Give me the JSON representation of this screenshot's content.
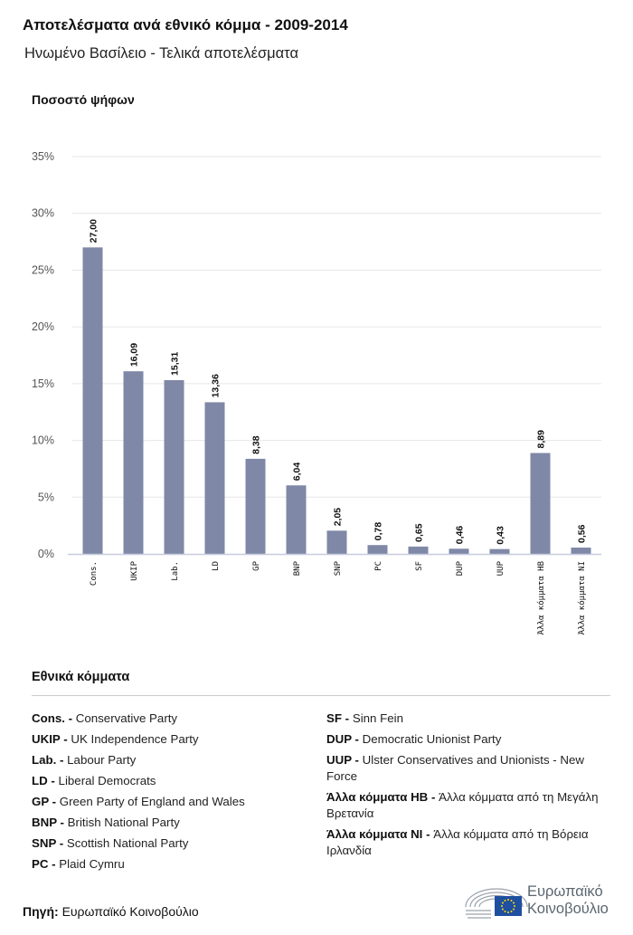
{
  "title": "Αποτελέσματα ανά εθνικό κόμμα - 2009-2014",
  "subtitle": "Ηνωμένο Βασίλειο - Τελικά αποτελέσματα",
  "chart_data": {
    "type": "bar",
    "ylabel": "Ποσοστό ψήφων",
    "categories": [
      "Cons.",
      "UKIP",
      "Lab.",
      "LD",
      "GP",
      "BNP",
      "SNP",
      "PC",
      "SF",
      "DUP",
      "UUP",
      "Άλλα κόμματα HB",
      "Άλλα κόμματα NI"
    ],
    "values": [
      27.0,
      16.09,
      15.31,
      13.36,
      8.38,
      6.04,
      2.05,
      0.78,
      0.65,
      0.46,
      0.43,
      8.89,
      0.56
    ],
    "value_labels": [
      "27,00",
      "16,09",
      "15,31",
      "13,36",
      "8,38",
      "6,04",
      "2,05",
      "0,78",
      "0,65",
      "0,46",
      "0,43",
      "8,89",
      "0,56"
    ],
    "ylim": [
      0,
      35
    ],
    "yticks": [
      "0%",
      "5%",
      "10%",
      "15%",
      "20%",
      "25%",
      "30%",
      "35%"
    ],
    "grid": true,
    "bar_color": "#7f88a6"
  },
  "legend": {
    "title": "Εθνικά κόμματα",
    "left": [
      {
        "abbr": "Cons. -",
        "name": "Conservative Party"
      },
      {
        "abbr": "UKIP -",
        "name": "UK Independence Party"
      },
      {
        "abbr": "Lab. -",
        "name": "Labour Party"
      },
      {
        "abbr": "LD -",
        "name": "Liberal Democrats"
      },
      {
        "abbr": "GP -",
        "name": "Green Party of England and Wales"
      },
      {
        "abbr": "BNP -",
        "name": "British National Party"
      },
      {
        "abbr": "SNP -",
        "name": "Scottish National Party"
      },
      {
        "abbr": "PC -",
        "name": "Plaid Cymru"
      }
    ],
    "right": [
      {
        "abbr": "SF -",
        "name": "Sinn Fein"
      },
      {
        "abbr": "DUP -",
        "name": "Democratic Unionist Party"
      },
      {
        "abbr": "UUP -",
        "name": "Ulster Conservatives and Unionists - New Force"
      },
      {
        "abbr": "Άλλα κόμματα HB -",
        "name": "Άλλα κόμματα από τη Μεγάλη Βρετανία"
      },
      {
        "abbr": "Άλλα κόμματα NI -",
        "name": "Άλλα κόμματα από τη Βόρεια Ιρλανδία"
      }
    ]
  },
  "source": {
    "label": "Πηγή:",
    "value": "Ευρωπαϊκό Κοινοβούλιο"
  },
  "logo": {
    "line1": "Ευρωπαϊκό",
    "line2": "Κοινοβούλιο"
  }
}
